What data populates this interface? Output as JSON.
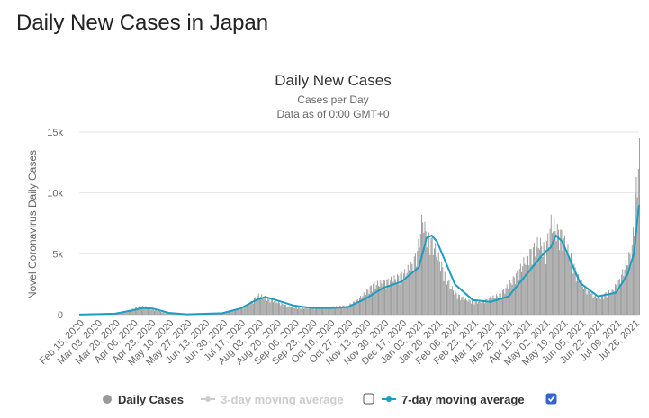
{
  "page": {
    "heading": "Daily New Cases in Japan"
  },
  "colors": {
    "bars": "#999999",
    "line": "#1c9ec4",
    "grid": "#e6e6e6",
    "disabled": "#cccccc",
    "checkbox_checked": "#3366cc"
  },
  "legend": {
    "items": [
      {
        "label": "Daily Cases",
        "enabled": true
      },
      {
        "label": "3-day moving average",
        "enabled": false,
        "checked": false
      },
      {
        "label": "7-day moving average",
        "enabled": true,
        "checked": true
      }
    ]
  },
  "chart_data": {
    "type": "bar",
    "title": "Daily New Cases",
    "subtitle_lines": [
      "Cases per Day",
      "Data as of 0:00 GMT+0"
    ],
    "ylabel": "Novel Coronavirus Daily Cases",
    "xlabel": "",
    "ylim": [
      0,
      15000
    ],
    "yticks": [
      0,
      5000,
      10000,
      15000
    ],
    "ytick_labels": [
      "0",
      "5k",
      "10k",
      "15k"
    ],
    "x_start": "2020-02-15",
    "x_end": "2021-07-31",
    "xtick_labels": [
      "Feb 15, 2020",
      "Mar 03, 2020",
      "Mar 20, 2020",
      "Apr 06, 2020",
      "Apr 23, 2020",
      "May 10, 2020",
      "May 27, 2020",
      "Jun 13, 2020",
      "Jun 30, 2020",
      "Jul 17, 2020",
      "Aug 03, 2020",
      "Aug 20, 2020",
      "Sep 06, 2020",
      "Sep 23, 2020",
      "Oct 10, 2020",
      "Oct 27, 2020",
      "Nov 13, 2020",
      "Nov 30, 2020",
      "Dec 17, 2020",
      "Jan 03, 2021",
      "Jan 20, 2021",
      "Feb 06, 2021",
      "Feb 23, 2021",
      "Mar 12, 2021",
      "Mar 29, 2021",
      "Apr 15, 2021",
      "May 02, 2021",
      "May 19, 2021",
      "Jun 05, 2021",
      "Jun 22, 2021",
      "Jul 09, 2021",
      "Jul 26, 2021"
    ],
    "grid": true,
    "series": [
      {
        "name": "Daily Cases",
        "kind": "bar",
        "x": [
          "2020-02-15",
          "2020-03-01",
          "2020-03-20",
          "2020-04-01",
          "2020-04-08",
          "2020-04-12",
          "2020-04-18",
          "2020-04-25",
          "2020-05-05",
          "2020-05-20",
          "2020-06-10",
          "2020-07-01",
          "2020-07-10",
          "2020-07-20",
          "2020-07-28",
          "2020-08-03",
          "2020-08-10",
          "2020-08-20",
          "2020-09-01",
          "2020-09-15",
          "2020-10-01",
          "2020-10-15",
          "2020-10-27",
          "2020-11-05",
          "2020-11-13",
          "2020-11-20",
          "2020-11-28",
          "2020-12-05",
          "2020-12-12",
          "2020-12-20",
          "2020-12-27",
          "2021-01-01",
          "2021-01-06",
          "2021-01-08",
          "2021-01-12",
          "2021-01-18",
          "2021-01-25",
          "2021-02-01",
          "2021-02-08",
          "2021-02-15",
          "2021-02-23",
          "2021-03-05",
          "2021-03-12",
          "2021-03-20",
          "2021-03-29",
          "2021-04-05",
          "2021-04-12",
          "2021-04-19",
          "2021-04-26",
          "2021-05-03",
          "2021-05-08",
          "2021-05-13",
          "2021-05-19",
          "2021-05-26",
          "2021-06-02",
          "2021-06-09",
          "2021-06-16",
          "2021-06-22",
          "2021-06-29",
          "2021-07-05",
          "2021-07-12",
          "2021-07-19",
          "2021-07-24",
          "2021-07-27",
          "2021-07-29",
          "2021-07-31"
        ],
        "values": [
          20,
          40,
          100,
          300,
          500,
          650,
          600,
          400,
          150,
          30,
          40,
          150,
          300,
          600,
          1000,
          1500,
          1300,
          1000,
          600,
          500,
          500,
          600,
          700,
          1100,
          1700,
          2300,
          2400,
          2600,
          2800,
          3200,
          3800,
          4800,
          7500,
          6500,
          6000,
          5000,
          3500,
          2200,
          1500,
          1200,
          1000,
          1000,
          1300,
          1500,
          2300,
          3000,
          4000,
          4800,
          5500,
          5000,
          7000,
          6500,
          6000,
          4500,
          3000,
          2000,
          1500,
          1300,
          1600,
          1800,
          2600,
          4000,
          5000,
          9000,
          10500,
          12300
        ]
      },
      {
        "name": "7-day moving average",
        "kind": "line",
        "x": [
          "2020-02-15",
          "2020-03-20",
          "2020-04-05",
          "2020-04-15",
          "2020-04-25",
          "2020-05-10",
          "2020-05-27",
          "2020-06-30",
          "2020-07-17",
          "2020-08-01",
          "2020-08-10",
          "2020-08-20",
          "2020-09-06",
          "2020-09-23",
          "2020-10-10",
          "2020-10-27",
          "2020-11-13",
          "2020-11-30",
          "2020-12-17",
          "2021-01-03",
          "2021-01-10",
          "2021-01-15",
          "2021-01-20",
          "2021-02-06",
          "2021-02-23",
          "2021-03-12",
          "2021-03-29",
          "2021-04-15",
          "2021-05-02",
          "2021-05-08",
          "2021-05-13",
          "2021-05-19",
          "2021-06-05",
          "2021-06-22",
          "2021-07-09",
          "2021-07-20",
          "2021-07-26",
          "2021-07-31"
        ],
        "values": [
          10,
          80,
          350,
          550,
          500,
          150,
          30,
          120,
          500,
          1200,
          1450,
          1200,
          750,
          550,
          530,
          620,
          1300,
          2200,
          2700,
          3900,
          6300,
          6500,
          6000,
          2500,
          1200,
          1050,
          1500,
          3300,
          5100,
          5500,
          6500,
          6000,
          2600,
          1500,
          1800,
          3300,
          5000,
          9000
        ]
      }
    ]
  }
}
